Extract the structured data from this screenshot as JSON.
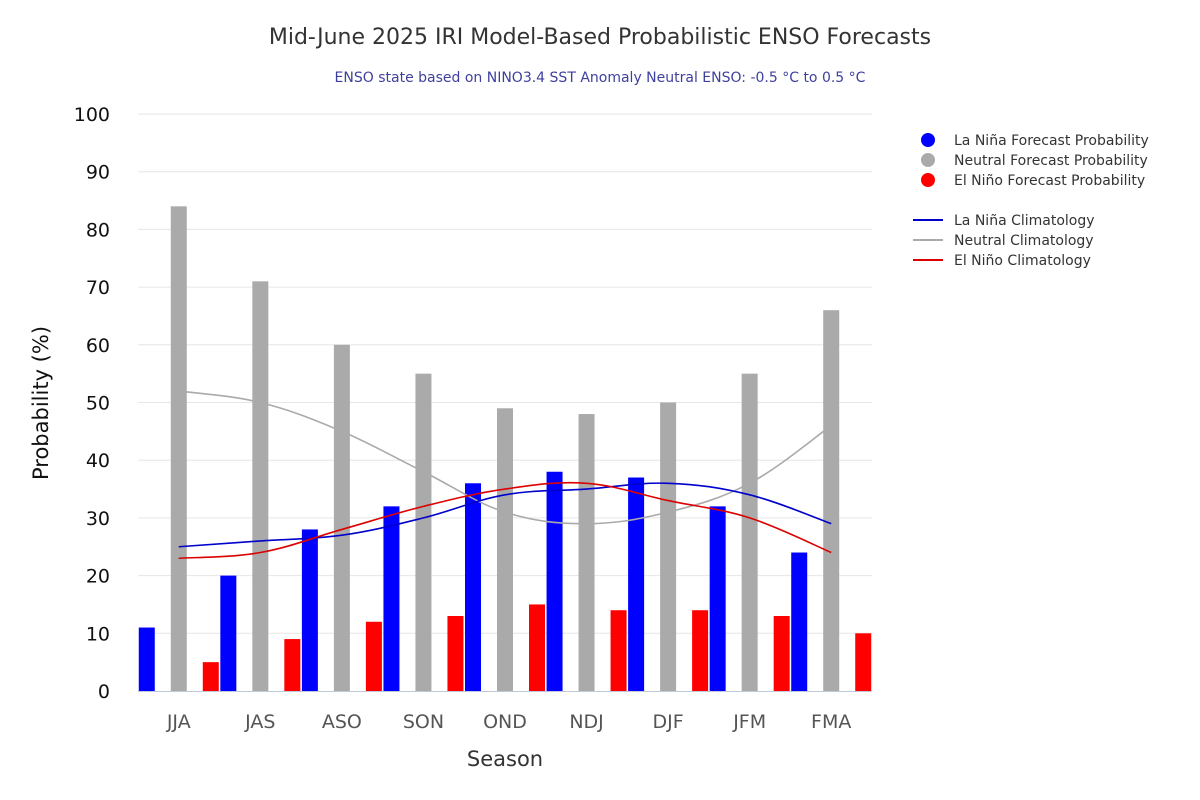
{
  "chart_data": {
    "type": "bar",
    "title": "Mid-June 2025 IRI Model-Based Probabilistic ENSO Forecasts",
    "subtitle": "ENSO state based on NINO3.4 SST Anomaly Neutral ENSO: -0.5 °C to 0.5 °C",
    "xlabel": "Season",
    "ylabel": "Probability (%)",
    "ylim": [
      0,
      100
    ],
    "yticks": [
      0,
      10,
      20,
      30,
      40,
      50,
      60,
      70,
      80,
      90,
      100
    ],
    "categories": [
      "JJA",
      "JAS",
      "ASO",
      "SON",
      "OND",
      "NDJ",
      "DJF",
      "JFM",
      "FMA"
    ],
    "series": [
      {
        "name": "La Niña Forecast Probability",
        "color": "#0000ff",
        "values": [
          11,
          20,
          28,
          32,
          36,
          38,
          37,
          32,
          24
        ]
      },
      {
        "name": "Neutral Forecast Probability",
        "color": "#aaaaaa",
        "values": [
          84,
          71,
          60,
          55,
          49,
          48,
          50,
          55,
          66
        ]
      },
      {
        "name": "El Niño Forecast Probability",
        "color": "#ff0000",
        "values": [
          5,
          9,
          12,
          13,
          15,
          14,
          14,
          13,
          10
        ]
      }
    ],
    "climatology": [
      {
        "name": "La Niña Climatology",
        "color": "#0000cc",
        "values": [
          25,
          26,
          27,
          30,
          34,
          35,
          36,
          34,
          29
        ]
      },
      {
        "name": "Neutral Climatology",
        "color": "#aaaaaa",
        "values": [
          52,
          50,
          45,
          38,
          31,
          29,
          31,
          36,
          46
        ]
      },
      {
        "name": "El Niño Climatology",
        "color": "#dd0000",
        "values": [
          23,
          24,
          28,
          32,
          35,
          36,
          33,
          30,
          24
        ]
      }
    ],
    "legend_position": "top-right",
    "grid": true
  }
}
